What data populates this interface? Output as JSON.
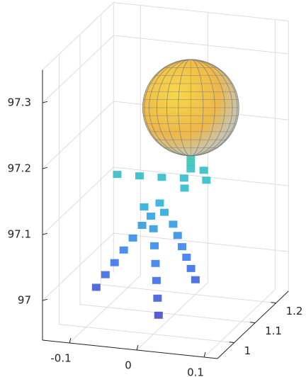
{
  "chart_data": {
    "type": "scatter3d",
    "xlim": [
      -0.14,
      0.12
    ],
    "ylim": [
      0.92,
      1.26
    ],
    "zlim": [
      96.94,
      97.35
    ],
    "xticks": [
      -0.1,
      0,
      0.1
    ],
    "yticks": [
      1,
      1.1,
      1.2
    ],
    "zticks": [
      97,
      97.1,
      97.2,
      97.3
    ],
    "grid": true,
    "colormap": [
      "#3e26a8",
      "#2f6ef0",
      "#1cb5d6",
      "#48cb86",
      "#f5e127"
    ],
    "points": {
      "x": [
        -0.02,
        -0.033,
        -0.046,
        -0.059,
        -0.072,
        -0.085,
        0,
        0.004,
        0.008,
        0.012,
        0.016,
        0.02,
        0.02,
        0.026,
        0.032,
        0.038,
        0.044,
        0.05,
        -0.01,
        -0.02,
        0.01,
        0,
        -0.06,
        -0.03,
        0,
        0.03,
        0.06,
        0.04,
        0.05,
        0.04,
        0.04,
        0.04
      ],
      "y": [
        1.01,
        1.008,
        1.006,
        1.004,
        1.002,
        1.0,
        1.0,
        0.992,
        0.984,
        0.976,
        0.968,
        0.96,
        1.03,
        1.032,
        1.034,
        1.036,
        1.038,
        1.04,
        1.02,
        1.02,
        1.02,
        1.03,
        1.02,
        1.03,
        1.04,
        1.05,
        1.06,
        1.02,
        1.08,
        1.05,
        1.05,
        1.05
      ],
      "z": [
        97.1,
        97.08,
        97.061,
        97.041,
        97.022,
        97.002,
        97.1,
        97.077,
        97.053,
        97.03,
        97.006,
        96.983,
        97.1,
        97.083,
        97.066,
        97.05,
        97.033,
        97.016,
        97.112,
        97.125,
        97.12,
        97.13,
        97.17,
        97.168,
        97.166,
        97.165,
        97.162,
        97.16,
        97.17,
        97.18,
        97.19,
        97.2
      ]
    },
    "sphere": {
      "center": [
        0.04,
        1.05,
        97.273
      ],
      "radius": 0.073
    }
  }
}
